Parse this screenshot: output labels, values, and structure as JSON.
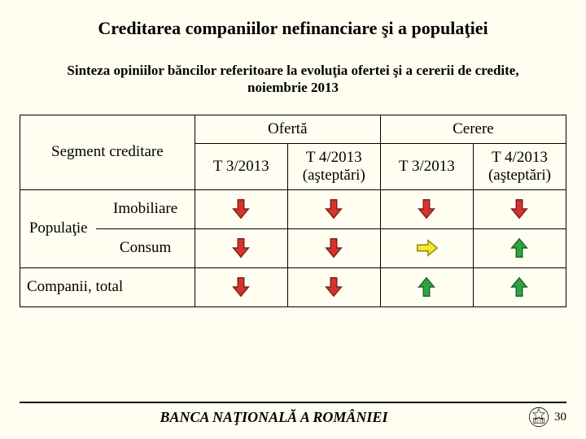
{
  "background_color": "#fffef0",
  "title": {
    "text": "Creditarea companiilor nefinanciare şi a populaţiei",
    "fontsize": 22
  },
  "subtitle": {
    "text": "Sinteza opiniilor băncilor referitoare la evoluţia ofertei şi a cererii de credite, noiembrie 2013",
    "fontsize": 17
  },
  "table": {
    "fontsize": 19,
    "header_group_1": "Ofertă",
    "header_group_2": "Cerere",
    "segment_header": "Segment creditare",
    "sub_col_1": "T 3/2013",
    "sub_col_2": "T 4/2013 (aşteptări)",
    "sub_col_3": "T 3/2013",
    "sub_col_4": "T 4/2013 (aşteptări)",
    "row_labels": {
      "populatie": "Populaţie",
      "imobiliare": "Imobiliare",
      "consum": "Consum",
      "companii": "Companii, total"
    },
    "col_widths": {
      "seg1": "14%",
      "seg2": "18%",
      "data": "17%"
    }
  },
  "arrows": {
    "imobiliare": [
      "down-red",
      "down-red",
      "down-red",
      "down-red"
    ],
    "consum": [
      "down-red",
      "down-red",
      "flat-yellow",
      "up-green"
    ],
    "companii": [
      "down-red",
      "down-red",
      "up-green",
      "up-green"
    ],
    "colors": {
      "down-red": {
        "fill": "#d6342a",
        "stroke": "#7a1f19"
      },
      "flat-yellow": {
        "fill": "#f2e82c",
        "stroke": "#8a8412"
      },
      "up-green": {
        "fill": "#2fa53e",
        "stroke": "#1c6326"
      }
    },
    "size": 30
  },
  "footer": {
    "text": "BANCA NAŢIONALĂ A ROMÂNIEI",
    "fontsize": 18,
    "page_number": "30",
    "logo_stroke": "#000000"
  }
}
